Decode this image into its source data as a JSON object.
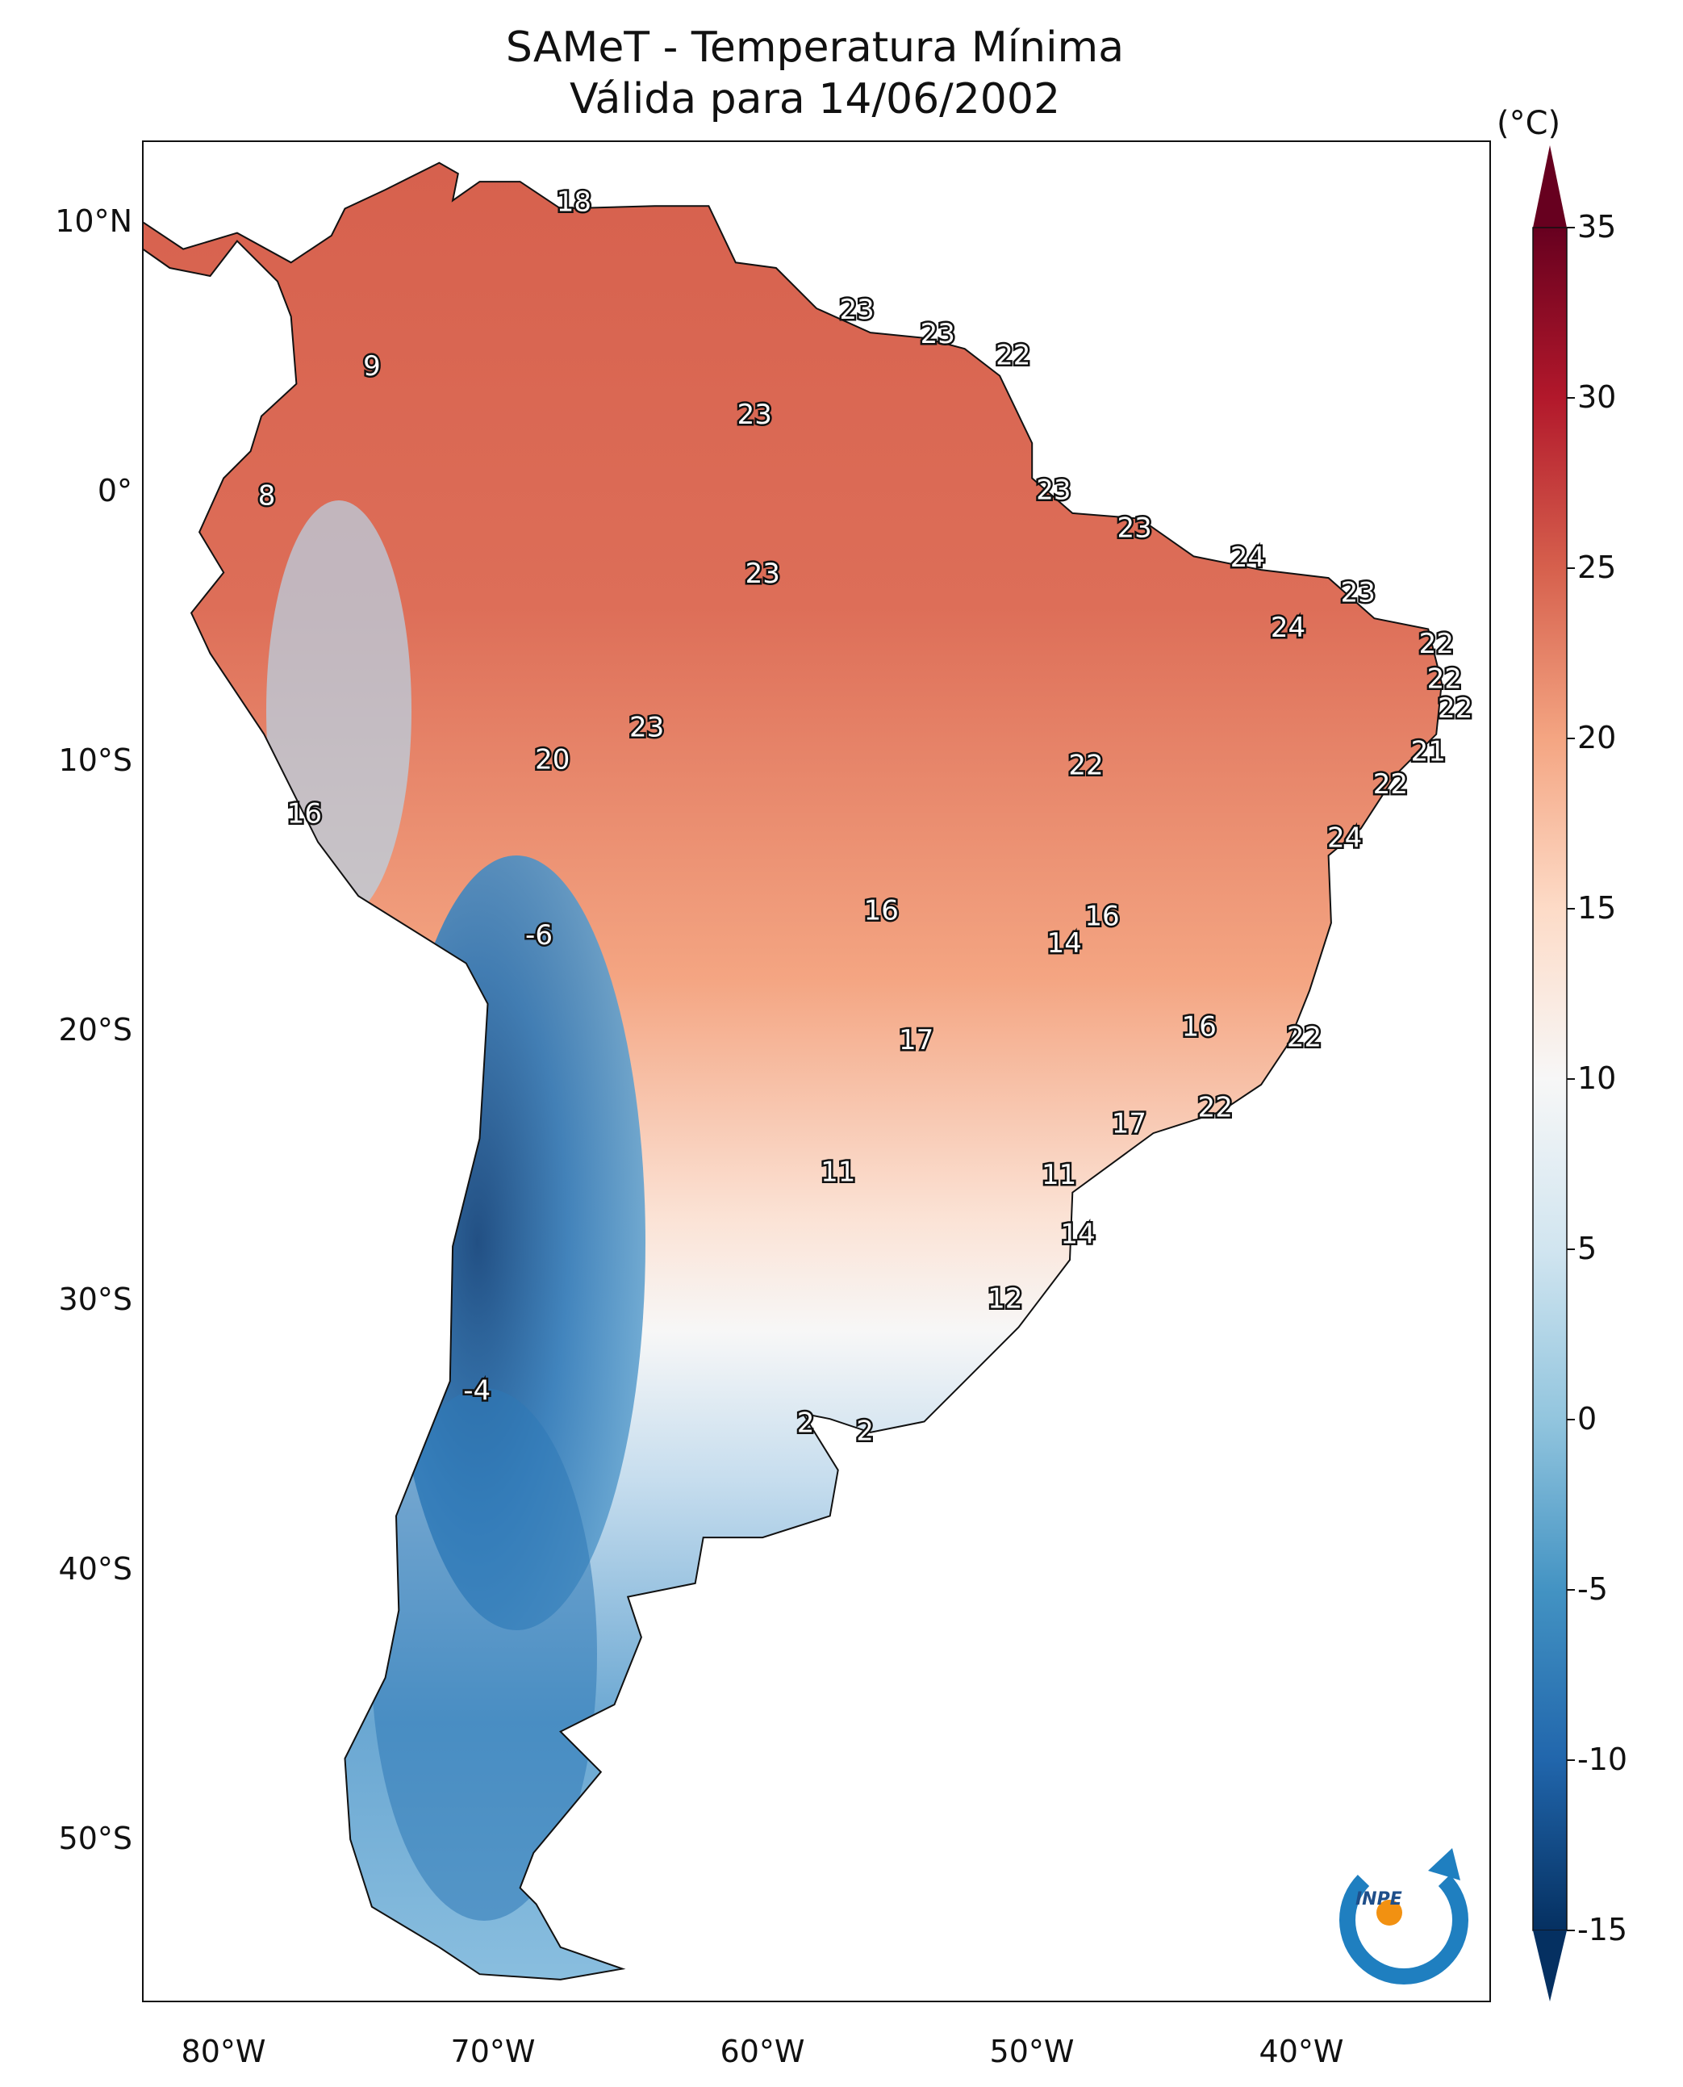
{
  "title": {
    "line1": "SAMeT - Temperatura Mínima",
    "line2": "Válida para 14/06/2002"
  },
  "map": {
    "lat_ticks": [
      "10°N",
      "0°",
      "10°S",
      "20°S",
      "30°S",
      "40°S",
      "50°S"
    ],
    "lon_ticks": [
      "80°W",
      "70°W",
      "60°W",
      "50°W",
      "40°W"
    ],
    "station_labels": [
      {
        "text": "18",
        "lon": -67,
        "lat": 10.7
      },
      {
        "text": "9",
        "lon": -74.5,
        "lat": 4.6
      },
      {
        "text": "8",
        "lon": -78.4,
        "lat": -0.2
      },
      {
        "text": "23",
        "lon": -56.5,
        "lat": 6.7
      },
      {
        "text": "23",
        "lon": -53.5,
        "lat": 5.8
      },
      {
        "text": "22",
        "lon": -50.7,
        "lat": 5.0
      },
      {
        "text": "23",
        "lon": -60.3,
        "lat": 2.8
      },
      {
        "text": "23",
        "lon": -49.2,
        "lat": 0.0
      },
      {
        "text": "23",
        "lon": -60,
        "lat": -3.1
      },
      {
        "text": "23",
        "lon": -46.2,
        "lat": -1.4
      },
      {
        "text": "24",
        "lon": -42,
        "lat": -2.5
      },
      {
        "text": "23",
        "lon": -37.9,
        "lat": -3.8
      },
      {
        "text": "24",
        "lon": -40.5,
        "lat": -5.1
      },
      {
        "text": "22",
        "lon": -35,
        "lat": -5.7
      },
      {
        "text": "22",
        "lon": -34.7,
        "lat": -7.0
      },
      {
        "text": "22",
        "lon": -34.3,
        "lat": -8.1
      },
      {
        "text": "21",
        "lon": -35.3,
        "lat": -9.7
      },
      {
        "text": "22",
        "lon": -36.7,
        "lat": -10.9
      },
      {
        "text": "24",
        "lon": -38.4,
        "lat": -12.9
      },
      {
        "text": "23",
        "lon": -64.3,
        "lat": -8.8
      },
      {
        "text": "20",
        "lon": -67.8,
        "lat": -10.0
      },
      {
        "text": "22",
        "lon": -48,
        "lat": -10.2
      },
      {
        "text": "16",
        "lon": -77,
        "lat": -12.0
      },
      {
        "text": "-6",
        "lon": -68.3,
        "lat": -16.5
      },
      {
        "text": "16",
        "lon": -55.6,
        "lat": -15.6
      },
      {
        "text": "16",
        "lon": -47.4,
        "lat": -15.8
      },
      {
        "text": "14",
        "lon": -48.8,
        "lat": -16.8
      },
      {
        "text": "17",
        "lon": -54.3,
        "lat": -20.4
      },
      {
        "text": "16",
        "lon": -43.8,
        "lat": -19.9
      },
      {
        "text": "22",
        "lon": -39.9,
        "lat": -20.3
      },
      {
        "text": "22",
        "lon": -43.2,
        "lat": -22.9
      },
      {
        "text": "17",
        "lon": -46.4,
        "lat": -23.5
      },
      {
        "text": "11",
        "lon": -57.2,
        "lat": -25.3
      },
      {
        "text": "11",
        "lon": -49,
        "lat": -25.4
      },
      {
        "text": "14",
        "lon": -48.3,
        "lat": -27.6
      },
      {
        "text": "12",
        "lon": -51,
        "lat": -30.0
      },
      {
        "text": "-4",
        "lon": -70.6,
        "lat": -33.4
      },
      {
        "text": "2",
        "lon": -58.4,
        "lat": -34.6
      },
      {
        "text": "2",
        "lon": -56.2,
        "lat": -34.9
      }
    ]
  },
  "colorbar": {
    "unit": "(°C)",
    "min": -15,
    "max": 35,
    "ticks": [
      "35",
      "30",
      "25",
      "20",
      "15",
      "10",
      "5",
      "0",
      "-5",
      "-10",
      "-15"
    ],
    "colors": [
      "#053061",
      "#2166ac",
      "#4393c3",
      "#92c5de",
      "#d1e5f0",
      "#f7f7f7",
      "#fddbc7",
      "#f4a582",
      "#d6604d",
      "#b2182b",
      "#67001f"
    ]
  },
  "logo": {
    "text": "INPE",
    "colors": [
      "#1f7fc0",
      "#f29111"
    ]
  }
}
